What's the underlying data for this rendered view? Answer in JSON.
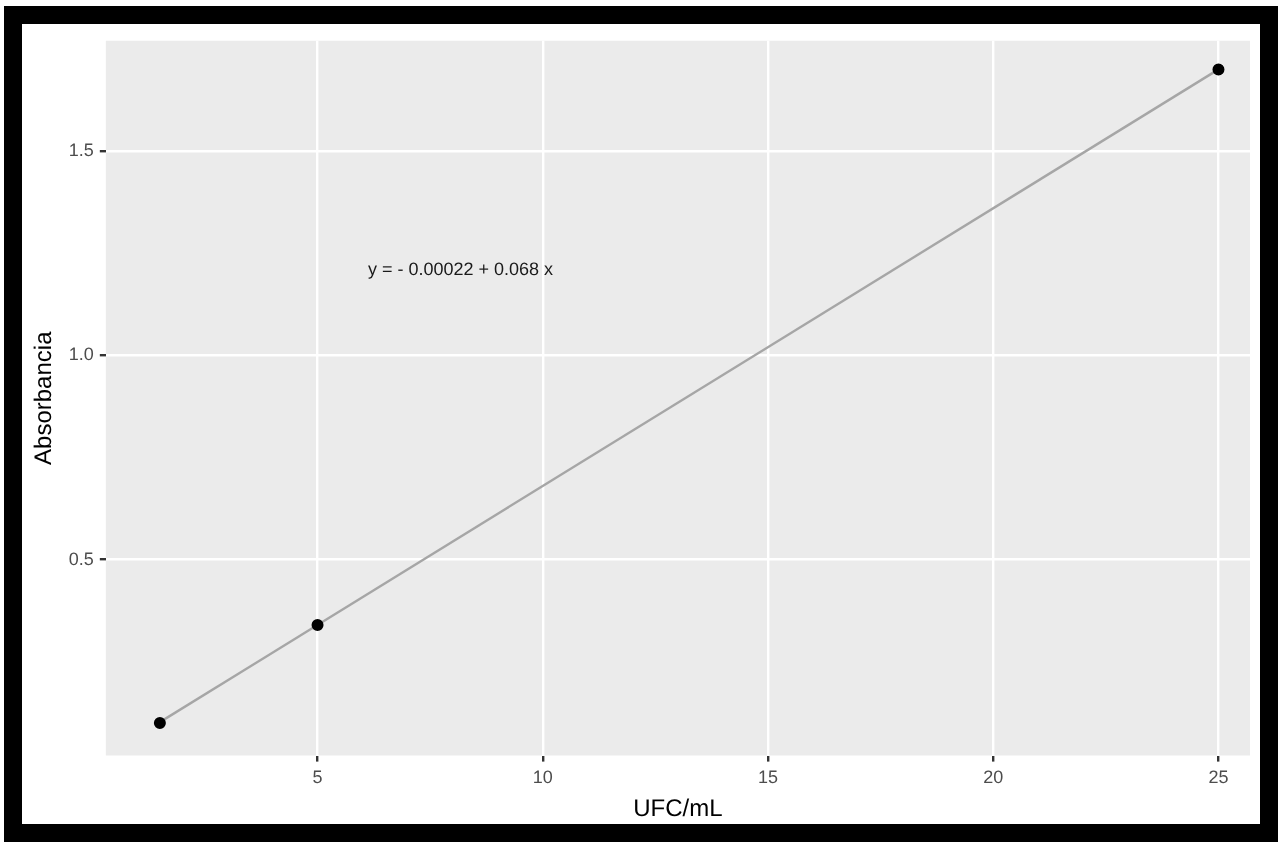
{
  "chart_data": {
    "type": "scatter",
    "xlabel": "UFC/mL",
    "ylabel": "Absorbancia",
    "series": [
      {
        "type": "line",
        "x": [
          1.5,
          25
        ],
        "values": [
          0.102,
          1.7
        ],
        "color": "#a6a6a6",
        "marker": "none"
      },
      {
        "type": "scatter",
        "x": [
          1.5,
          5,
          25
        ],
        "values": [
          0.1,
          0.34,
          1.7
        ],
        "color": "#000000",
        "marker": "circle"
      }
    ],
    "xlim": [
      0.3,
      25.7
    ],
    "xticks": [
      5,
      10,
      15,
      20,
      25
    ],
    "ylim": [
      0.02,
      1.77
    ],
    "yticks": [
      0.5,
      {
        "value": 1,
        "label": "1.0"
      },
      1.5
    ],
    "grid": true,
    "legend": false,
    "annotations": [
      "y = - 0.00022 + 0.068 x"
    ]
  }
}
